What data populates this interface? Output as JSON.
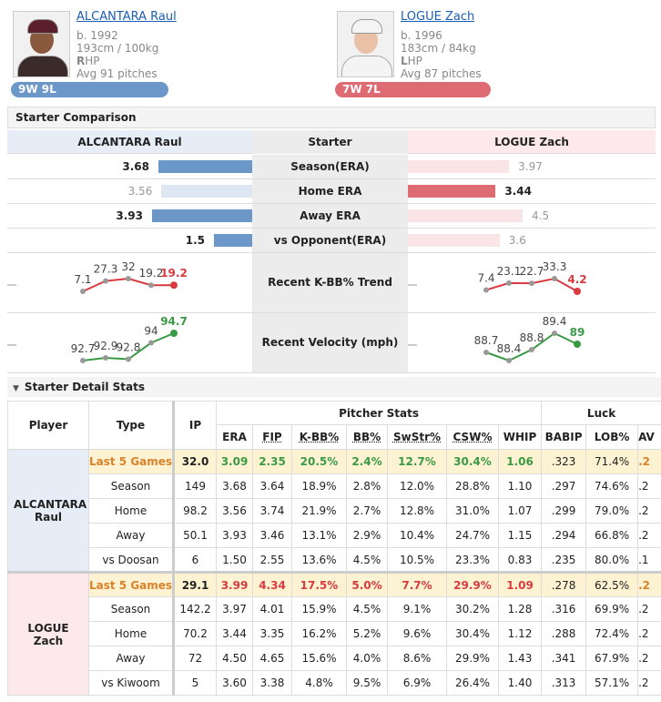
{
  "players": [
    {
      "name": "ALCANTARA Raul",
      "born": "b. 1992",
      "size": "193cm / 100kg",
      "hand": "RHP",
      "pitches": "Avg 91 pitches",
      "record": "9W 9L",
      "color": "#6b98c8",
      "pale": "#dde7f2",
      "bg": "#e6edf6"
    },
    {
      "name": "LOGUE Zach",
      "born": "b. 1996",
      "size": "183cm / 84kg",
      "hand": "LHP",
      "pitches": "Avg 87 pitches",
      "record": "7W 7L",
      "color": "#de6b72",
      "pale": "#fbe4e6",
      "bg": "#fde9eb"
    }
  ],
  "comparison": {
    "title": "Starter Comparison",
    "header": "Starter",
    "rows": [
      {
        "label": "Season(ERA)",
        "values": [
          3.68,
          3.97
        ]
      },
      {
        "label": "Home ERA",
        "values": [
          3.56,
          3.44
        ]
      },
      {
        "label": "Away ERA",
        "values": [
          3.93,
          4.5
        ]
      },
      {
        "label": "vs Opponent(ERA)",
        "values": [
          1.5,
          3.6
        ]
      }
    ],
    "trends": [
      {
        "label": "Recent K-BB% Trend",
        "highlight_color": "#d93a3f",
        "series": [
          [
            7.1,
            27.3,
            32,
            19.2,
            19.2
          ],
          [
            7.4,
            23.1,
            22.7,
            33.3,
            4.2
          ]
        ]
      },
      {
        "label": "Recent Velocity (mph)",
        "highlight_color": "#3a9a44",
        "series": [
          [
            92.7,
            92.9,
            92.8,
            94,
            94.7
          ],
          [
            88.7,
            88.4,
            88.8,
            89.4,
            89
          ]
        ]
      }
    ]
  },
  "detail": {
    "title": "Starter Detail Stats",
    "group_headers": [
      "Pitcher Stats",
      "Luck"
    ],
    "columns": [
      "Player",
      "Type",
      "IP",
      "ERA",
      "FIP",
      "K-BB%",
      "BB%",
      "SwStr%",
      "CSW%",
      "WHIP",
      "BABIP",
      "LOB%",
      "AV"
    ],
    "groups": [
      {
        "highlight_color": "#3a9a44",
        "rows": [
          {
            "type": "Last 5 Games",
            "stats": [
              "32.0",
              "3.09",
              "2.35",
              "20.5%",
              "2.4%",
              "12.7%",
              "30.4%",
              "1.06",
              ".323",
              "71.4%",
              ".2"
            ]
          },
          {
            "type": "Season",
            "stats": [
              "149",
              "3.68",
              "3.64",
              "18.9%",
              "2.8%",
              "12.0%",
              "28.8%",
              "1.10",
              ".297",
              "74.6%",
              ".2"
            ]
          },
          {
            "type": "Home",
            "stats": [
              "98.2",
              "3.56",
              "3.74",
              "21.9%",
              "2.7%",
              "12.8%",
              "31.0%",
              "1.07",
              ".299",
              "79.0%",
              ".2"
            ]
          },
          {
            "type": "Away",
            "stats": [
              "50.1",
              "3.93",
              "3.46",
              "13.1%",
              "2.9%",
              "10.4%",
              "24.7%",
              "1.15",
              ".294",
              "66.8%",
              ".2"
            ]
          },
          {
            "type": "vs Doosan",
            "stats": [
              "6",
              "1.50",
              "2.55",
              "13.6%",
              "4.5%",
              "10.5%",
              "23.3%",
              "0.83",
              ".235",
              "80.0%",
              ".1"
            ]
          }
        ]
      },
      {
        "highlight_color": "#d93a3f",
        "rows": [
          {
            "type": "Last 5 Games",
            "stats": [
              "29.1",
              "3.99",
              "4.34",
              "17.5%",
              "5.0%",
              "7.7%",
              "29.9%",
              "1.09",
              ".278",
              "62.5%",
              ".2"
            ]
          },
          {
            "type": "Season",
            "stats": [
              "142.2",
              "3.97",
              "4.01",
              "15.9%",
              "4.5%",
              "9.1%",
              "30.2%",
              "1.28",
              ".316",
              "69.9%",
              ".2"
            ]
          },
          {
            "type": "Home",
            "stats": [
              "70.2",
              "3.44",
              "3.35",
              "16.2%",
              "5.2%",
              "9.6%",
              "30.4%",
              "1.12",
              ".288",
              "72.4%",
              ".2"
            ]
          },
          {
            "type": "Away",
            "stats": [
              "72",
              "4.50",
              "4.65",
              "15.6%",
              "4.0%",
              "8.6%",
              "29.9%",
              "1.43",
              ".341",
              "67.9%",
              ".2"
            ]
          },
          {
            "type": "vs Kiwoom",
            "stats": [
              "5",
              "3.60",
              "3.38",
              "4.8%",
              "9.5%",
              "6.9%",
              "26.4%",
              "1.40",
              ".313",
              "57.1%",
              ".2"
            ]
          }
        ]
      }
    ]
  }
}
